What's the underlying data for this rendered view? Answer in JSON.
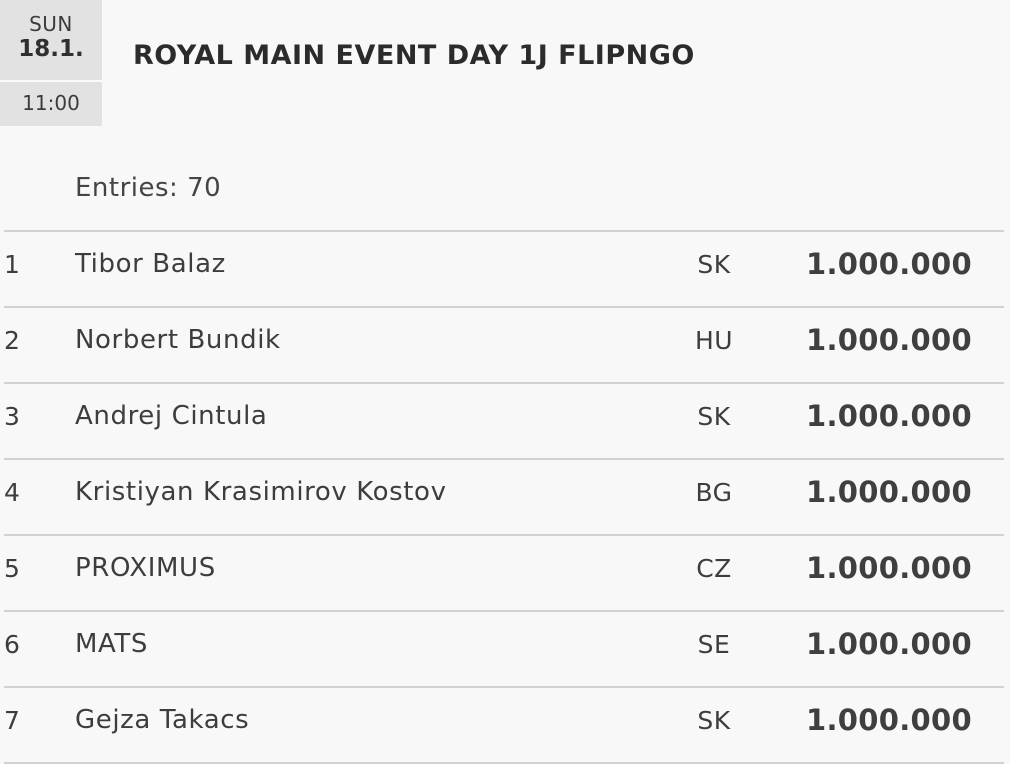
{
  "event": {
    "day_name": "SUN",
    "date": "18.1.",
    "time": "11:00",
    "title": "ROYAL MAIN EVENT DAY 1J FLIPNGO",
    "entries": "Entries: 70"
  },
  "results": [
    {
      "rank": "1",
      "name": "Tibor Balaz",
      "country": "SK",
      "prize": "1.000.000"
    },
    {
      "rank": "2",
      "name": "Norbert Bundik",
      "country": "HU",
      "prize": "1.000.000"
    },
    {
      "rank": "3",
      "name": "Andrej Cintula",
      "country": "SK",
      "prize": "1.000.000"
    },
    {
      "rank": "4",
      "name": "Kristiyan Krasimirov Kostov",
      "country": "BG",
      "prize": "1.000.000"
    },
    {
      "rank": "5",
      "name": "PROXIMUS",
      "country": "CZ",
      "prize": "1.000.000"
    },
    {
      "rank": "6",
      "name": "MATS",
      "country": "SE",
      "prize": "1.000.000"
    },
    {
      "rank": "7",
      "name": "Gejza Takacs",
      "country": "SK",
      "prize": "1.000.000"
    }
  ]
}
